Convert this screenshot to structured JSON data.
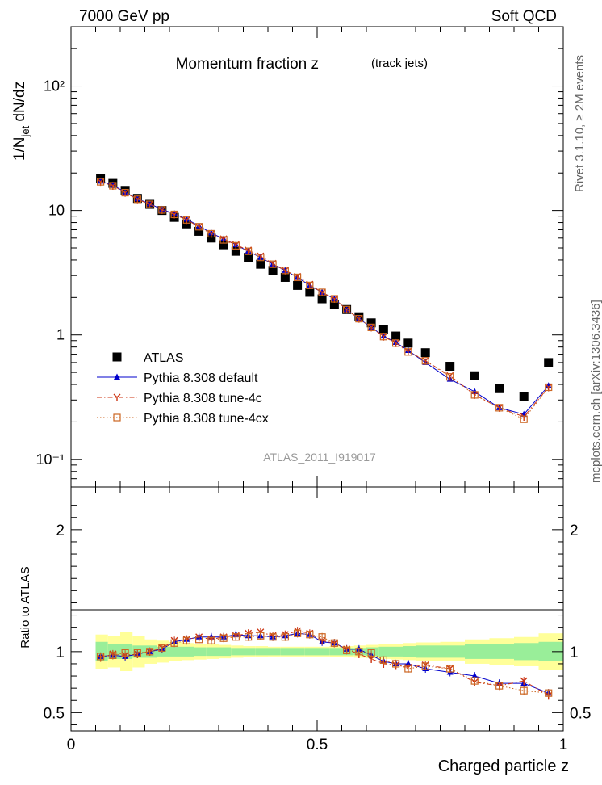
{
  "header": {
    "left": "7000 GeV pp",
    "right": "Soft QCD"
  },
  "side": {
    "rivet": "Rivet 3.1.10, ≥ 2M events",
    "mcplots": "mcplots.cern.ch [arXiv:1306.3436]"
  },
  "chart_data": [
    {
      "type": "scatter",
      "title": "Momentum fraction z",
      "subtitle": "(track jets)",
      "ylabel": "1/N_jet dN/dz",
      "yscale": "log",
      "ylim": [
        0.06,
        300
      ],
      "xlim": [
        0,
        1.0
      ],
      "watermark": "ATLAS_2011_I919017",
      "legend_position": "bottom-left",
      "x": [
        0.06,
        0.085,
        0.11,
        0.135,
        0.16,
        0.185,
        0.21,
        0.235,
        0.26,
        0.285,
        0.31,
        0.335,
        0.36,
        0.385,
        0.41,
        0.435,
        0.46,
        0.485,
        0.51,
        0.535,
        0.56,
        0.585,
        0.61,
        0.635,
        0.66,
        0.685,
        0.72,
        0.77,
        0.82,
        0.87,
        0.92,
        0.97
      ],
      "series": [
        {
          "name": "ATLAS",
          "color": "#000000",
          "marker": "square",
          "values": [
            18.0,
            16.5,
            14.5,
            12.5,
            11.2,
            10.0,
            8.8,
            7.8,
            6.8,
            6.0,
            5.3,
            4.7,
            4.2,
            3.7,
            3.3,
            2.9,
            2.5,
            2.2,
            1.95,
            1.75,
            1.6,
            1.4,
            1.25,
            1.1,
            0.98,
            0.86,
            0.72,
            0.56,
            0.47,
            0.37,
            0.32,
            0.6
          ]
        },
        {
          "name": "Pythia 8.308 default",
          "color": "#0000cc",
          "marker": "triangle",
          "line": "solid",
          "values": [
            17.2,
            16.0,
            14.0,
            12.4,
            11.3,
            10.2,
            9.4,
            8.5,
            7.5,
            6.6,
            5.9,
            5.3,
            4.7,
            4.2,
            3.7,
            3.3,
            2.9,
            2.5,
            2.2,
            1.95,
            1.6,
            1.35,
            1.15,
            0.98,
            0.87,
            0.75,
            0.6,
            0.44,
            0.35,
            0.26,
            0.23,
            0.39
          ]
        },
        {
          "name": "Pythia 8.308 tune-4c",
          "color": "#cc3311",
          "marker": "star",
          "line": "dashdot",
          "values": [
            17.0,
            15.8,
            13.9,
            12.3,
            11.2,
            10.1,
            9.3,
            8.4,
            7.4,
            6.5,
            5.9,
            5.3,
            4.8,
            4.3,
            3.75,
            3.3,
            2.95,
            2.55,
            2.2,
            1.95,
            1.6,
            1.35,
            1.15,
            0.97,
            0.86,
            0.74,
            0.62,
            0.47,
            0.33,
            0.26,
            0.22,
            0.38
          ]
        },
        {
          "name": "Pythia 8.308 tune-4cx",
          "color": "#cc6622",
          "marker": "open-square",
          "line": "dotted",
          "values": [
            17.0,
            15.8,
            13.9,
            12.3,
            11.2,
            10.1,
            9.3,
            8.4,
            7.4,
            6.5,
            5.8,
            5.2,
            4.7,
            4.2,
            3.7,
            3.3,
            2.9,
            2.5,
            2.2,
            1.95,
            1.6,
            1.35,
            1.15,
            0.97,
            0.86,
            0.73,
            0.62,
            0.46,
            0.33,
            0.26,
            0.21,
            0.38
          ]
        }
      ]
    },
    {
      "type": "scatter",
      "ylabel": "Ratio to ATLAS",
      "xlabel": "Charged particle z",
      "ylim": [
        0.35,
        2.35
      ],
      "xlim": [
        0,
        1.0
      ],
      "x_edges": [
        0.05,
        0.075,
        0.1,
        0.125,
        0.15,
        0.175,
        0.2,
        0.225,
        0.25,
        0.275,
        0.3,
        0.325,
        0.35,
        0.375,
        0.4,
        0.425,
        0.45,
        0.475,
        0.5,
        0.525,
        0.55,
        0.575,
        0.6,
        0.625,
        0.65,
        0.675,
        0.7,
        0.75,
        0.8,
        0.85,
        0.9,
        0.95,
        1.0
      ],
      "band_inner": [
        0.08,
        0.06,
        0.06,
        0.05,
        0.05,
        0.04,
        0.04,
        0.04,
        0.035,
        0.035,
        0.035,
        0.03,
        0.03,
        0.03,
        0.03,
        0.03,
        0.03,
        0.03,
        0.03,
        0.03,
        0.03,
        0.03,
        0.035,
        0.04,
        0.04,
        0.045,
        0.05,
        0.05,
        0.06,
        0.06,
        0.07,
        0.08
      ],
      "band_outer": [
        0.14,
        0.13,
        0.16,
        0.13,
        0.1,
        0.09,
        0.08,
        0.07,
        0.065,
        0.06,
        0.055,
        0.05,
        0.045,
        0.045,
        0.04,
        0.04,
        0.04,
        0.04,
        0.04,
        0.045,
        0.045,
        0.05,
        0.055,
        0.06,
        0.065,
        0.07,
        0.075,
        0.08,
        0.1,
        0.11,
        0.12,
        0.15
      ],
      "band_colors": {
        "inner": "#99ee99",
        "outer": "#ffff99"
      },
      "x": [
        0.06,
        0.085,
        0.11,
        0.135,
        0.16,
        0.185,
        0.21,
        0.235,
        0.26,
        0.285,
        0.31,
        0.335,
        0.36,
        0.385,
        0.41,
        0.435,
        0.46,
        0.485,
        0.51,
        0.535,
        0.56,
        0.585,
        0.61,
        0.635,
        0.66,
        0.685,
        0.72,
        0.77,
        0.82,
        0.87,
        0.92,
        0.97
      ],
      "series": [
        {
          "name": "Pythia 8.308 default",
          "color": "#0000cc",
          "marker": "triangle",
          "line": "solid",
          "values": [
            0.96,
            0.97,
            0.96,
            0.98,
            1.0,
            1.02,
            1.08,
            1.1,
            1.12,
            1.12,
            1.12,
            1.14,
            1.13,
            1.13,
            1.12,
            1.13,
            1.15,
            1.14,
            1.08,
            1.07,
            1.02,
            1.02,
            0.97,
            0.92,
            0.9,
            0.9,
            0.86,
            0.83,
            0.8,
            0.74,
            0.74,
            0.66
          ]
        },
        {
          "name": "Pythia 8.308 tune-4c",
          "color": "#cc3311",
          "marker": "star",
          "line": "dashdot",
          "values": [
            0.95,
            0.98,
            0.97,
            0.98,
            1.0,
            1.03,
            1.09,
            1.1,
            1.12,
            1.1,
            1.12,
            1.13,
            1.15,
            1.16,
            1.13,
            1.14,
            1.17,
            1.15,
            1.09,
            1.07,
            1.02,
            0.98,
            0.94,
            0.9,
            0.89,
            0.87,
            0.89,
            0.86,
            0.75,
            0.72,
            0.76,
            0.64
          ]
        },
        {
          "name": "Pythia 8.308 tune-4cx",
          "color": "#cc6622",
          "marker": "open-square",
          "line": "dotted",
          "values": [
            0.96,
            0.97,
            0.99,
            0.99,
            1.0,
            1.03,
            1.07,
            1.09,
            1.1,
            1.09,
            1.11,
            1.12,
            1.12,
            1.13,
            1.12,
            1.12,
            1.15,
            1.14,
            1.12,
            1.07,
            1.01,
            1.0,
            0.99,
            0.93,
            0.9,
            0.86,
            0.88,
            0.86,
            0.76,
            0.72,
            0.68,
            0.66
          ]
        }
      ]
    }
  ],
  "axis_labels": {
    "top_y": [
      "10⁻¹",
      "1",
      "10",
      "10²"
    ],
    "bottom_y": [
      "0.5",
      "1",
      "2"
    ],
    "x": [
      "0",
      "0.5",
      "1"
    ]
  }
}
